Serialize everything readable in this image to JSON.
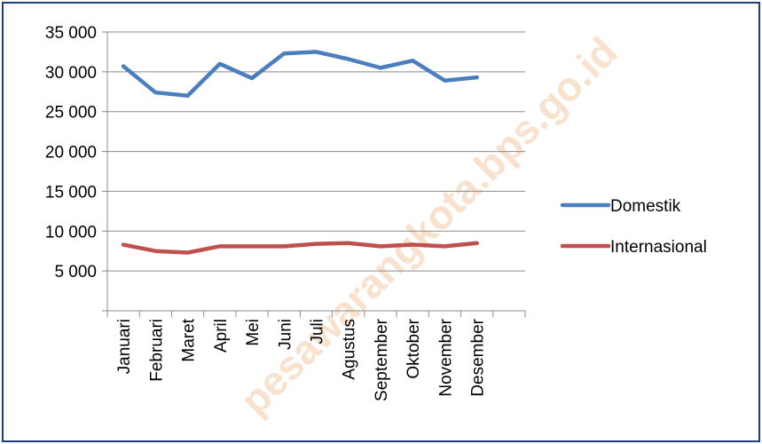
{
  "watermark": "pesawarangkota.bps.go.id",
  "chart_data": {
    "type": "line",
    "categories": [
      "Januari",
      "Februari",
      "Maret",
      "April",
      "Mei",
      "Juni",
      "Juli",
      "Agustus",
      "September",
      "Oktober",
      "November",
      "Desember"
    ],
    "y_ticks": [
      "",
      "5 000",
      "10 000",
      "15 000",
      "20 000",
      "25 000",
      "30 000",
      "35 000"
    ],
    "ylim": [
      0,
      35000
    ],
    "grid": true,
    "legend_position": "right",
    "series": [
      {
        "name": "Domestik",
        "color": "#4a7ebf",
        "values": [
          30700,
          27400,
          27000,
          31000,
          29200,
          32300,
          32500,
          31600,
          30500,
          31400,
          28900,
          29300
        ]
      },
      {
        "name": "Internasional",
        "color": "#c0504d",
        "values": [
          8300,
          7500,
          7300,
          8100,
          8100,
          8100,
          8400,
          8500,
          8100,
          8300,
          8100,
          8500
        ]
      }
    ]
  }
}
